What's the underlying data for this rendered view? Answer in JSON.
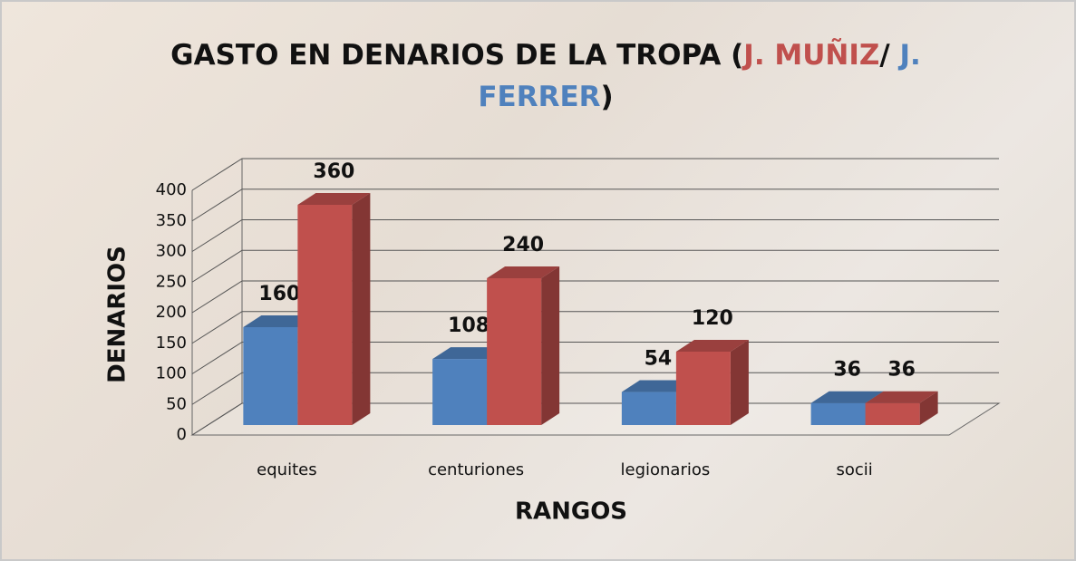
{
  "chart_data": {
    "type": "bar3d",
    "title": [
      {
        "text": "GASTO EN DENARIOS DE LA TROPA (",
        "color": "#111111"
      },
      {
        "text": "J. MUÑIZ",
        "color": "#c0504d"
      },
      {
        "text": "/ ",
        "color": "#111111"
      },
      {
        "text": "J. FERRER",
        "color": "#4f81bd"
      },
      {
        "text": ")",
        "color": "#111111"
      }
    ],
    "y_label": "DENARIOS",
    "x_label": "RANGOS",
    "categories": [
      "equites",
      "centuriones",
      "legionarios",
      "socii"
    ],
    "series": [
      {
        "color": "#4f81bd",
        "values": [
          160,
          108,
          54,
          36
        ]
      },
      {
        "color": "#c0504d",
        "values": [
          360,
          240,
          120,
          36
        ]
      }
    ],
    "ylim": [
      0,
      400
    ],
    "yticks": [
      0,
      50,
      100,
      150,
      200,
      250,
      300,
      350,
      400
    ],
    "grid": true
  }
}
